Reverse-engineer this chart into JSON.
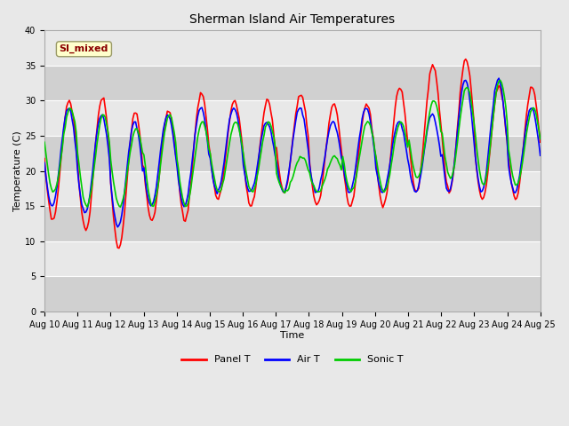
{
  "title": "Sherman Island Air Temperatures",
  "xlabel": "Time",
  "ylabel": "Temperature (C)",
  "ylim": [
    0,
    40
  ],
  "yticks": [
    0,
    5,
    10,
    15,
    20,
    25,
    30,
    35,
    40
  ],
  "x_tick_days": [
    10,
    11,
    12,
    13,
    14,
    15,
    16,
    17,
    18,
    19,
    20,
    21,
    22,
    23,
    24,
    25
  ],
  "colors": {
    "panel_t": "#ff0000",
    "air_t": "#0000ff",
    "sonic_t": "#00cc00",
    "fig_bg": "#e8e8e8",
    "axes_bg_light": "#e8e8e8",
    "axes_bg_dark": "#d0d0d0",
    "grid_line": "#ffffff"
  },
  "legend_label": "SI_mixed",
  "legend_label_color": "#8b0000",
  "legend_label_bg": "#ffffcc",
  "legend_entries": [
    "Panel T",
    "Air T",
    "Sonic T"
  ],
  "linewidth": 1.2,
  "figsize": [
    6.4,
    4.8
  ],
  "dpi": 100,
  "title_fontsize": 10,
  "axis_label_fontsize": 8,
  "tick_fontsize": 7,
  "legend_fontsize": 8,
  "n_days": 15,
  "panel_mins": [
    13,
    11.5,
    9,
    13,
    13,
    16,
    15,
    17,
    15,
    15,
    15,
    17,
    17,
    16,
    16,
    16
  ],
  "panel_maxs": [
    30,
    30.5,
    28.5,
    28.5,
    31,
    30,
    30,
    31,
    29.5,
    29.5,
    32,
    35,
    36,
    32,
    32,
    32
  ],
  "air_mins": [
    15,
    14,
    12,
    15,
    15,
    17,
    17,
    17,
    17,
    17,
    17,
    17,
    17,
    17,
    17,
    17
  ],
  "air_maxs": [
    29,
    28,
    27,
    28,
    29,
    29,
    27,
    29,
    27,
    29,
    27,
    28,
    33,
    33,
    29,
    29
  ],
  "sonic_mins": [
    17,
    15,
    15,
    15,
    15,
    17,
    17,
    17,
    17,
    17,
    17,
    19,
    19,
    18,
    18,
    18
  ],
  "sonic_maxs": [
    29,
    28,
    26,
    28,
    27,
    27,
    27,
    22,
    22,
    27,
    27,
    30,
    32,
    33,
    29,
    29
  ]
}
